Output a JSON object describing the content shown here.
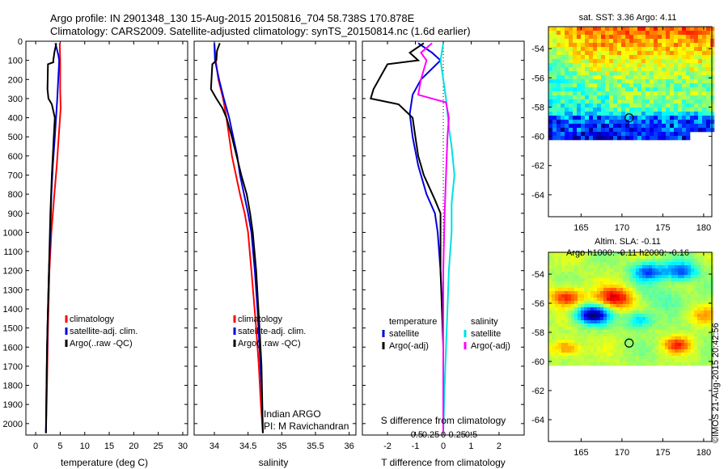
{
  "header": {
    "title_line1": "Argo profile: IN 2901348_130 15-Aug-2015 20150816_704 58.738S 170.878E",
    "title_line2": "Climatology: CARS2009. Satellite-adjusted climatology: synTS_20150814.nc (1.6d earlier)"
  },
  "colors": {
    "climatology": "#ff0000",
    "satellite_adj": "#0000dd",
    "argo": "#000000",
    "salinity_sat": "#00e0e0",
    "salinity_argo": "#ff00ff"
  },
  "chart_data": [
    {
      "id": "temperature",
      "type": "line",
      "xlabel": "temperature (deg C)",
      "xlim": [
        -2,
        31
      ],
      "xticks": [
        0,
        5,
        10,
        15,
        20,
        25,
        30
      ],
      "xtick_labels": [
        "0",
        "5",
        "10",
        "15",
        "20",
        "25",
        "30"
      ],
      "ylim": [
        0,
        2060
      ],
      "yticks": [
        0,
        100,
        200,
        300,
        400,
        500,
        600,
        700,
        800,
        900,
        1000,
        1100,
        1200,
        1300,
        1400,
        1500,
        1600,
        1700,
        1800,
        1900,
        2000
      ],
      "legend": [
        "climatology",
        "satellite-adj. clim.",
        "Argo(..raw -QC)"
      ],
      "series": [
        {
          "name": "climatology",
          "color": "#ff0000",
          "points": [
            [
              4.9,
              10
            ],
            [
              5.0,
              100
            ],
            [
              5.0,
              250
            ],
            [
              5.1,
              350
            ],
            [
              4.7,
              500
            ],
            [
              4.3,
              650
            ],
            [
              3.8,
              800
            ],
            [
              3.2,
              1000
            ],
            [
              2.8,
              1200
            ],
            [
              2.5,
              1500
            ],
            [
              2.3,
              1800
            ],
            [
              2.1,
              2050
            ]
          ]
        },
        {
          "name": "satellite-adj. clim.",
          "color": "#0000dd",
          "points": [
            [
              4.0,
              10
            ],
            [
              4.6,
              70
            ],
            [
              4.8,
              100
            ],
            [
              4.4,
              300
            ],
            [
              3.9,
              500
            ],
            [
              3.5,
              650
            ],
            [
              3.2,
              800
            ],
            [
              3.0,
              1000
            ],
            [
              2.7,
              1200
            ],
            [
              2.4,
              1500
            ],
            [
              2.2,
              1800
            ],
            [
              2.1,
              2050
            ]
          ]
        },
        {
          "name": "Argo(..raw -QC)",
          "color": "#000000",
          "points": [
            [
              4.2,
              10
            ],
            [
              3.8,
              60
            ],
            [
              3.6,
              100
            ],
            [
              3.6,
              110
            ],
            [
              2.5,
              120
            ],
            [
              2.4,
              250
            ],
            [
              2.6,
              300
            ],
            [
              3.3,
              330
            ],
            [
              3.9,
              400
            ],
            [
              3.7,
              500
            ],
            [
              3.3,
              700
            ],
            [
              3.0,
              900
            ],
            [
              2.8,
              1100
            ],
            [
              2.6,
              1300
            ],
            [
              2.3,
              1600
            ],
            [
              2.1,
              2050
            ]
          ]
        }
      ]
    },
    {
      "id": "salinity",
      "type": "line",
      "xlabel": "salinity",
      "xlim": [
        33.7,
        36.1
      ],
      "xticks": [
        34,
        34.5,
        35,
        35.5,
        36
      ],
      "xtick_labels": [
        "34",
        "34.5",
        "35",
        "35.5",
        "36"
      ],
      "ylim": [
        0,
        2060
      ],
      "legend": [
        "climatology",
        "satellite-adj. clim.",
        "Argo(..raw -QC)"
      ],
      "annotation": [
        "Indian ARGO",
        "PI: M Ravichandran"
      ],
      "series": [
        {
          "name": "climatology",
          "color": "#ff0000",
          "points": [
            [
              34.0,
              10
            ],
            [
              34.02,
              100
            ],
            [
              34.06,
              200
            ],
            [
              34.13,
              300
            ],
            [
              34.18,
              400
            ],
            [
              34.22,
              500
            ],
            [
              34.26,
              600
            ],
            [
              34.32,
              700
            ],
            [
              34.38,
              800
            ],
            [
              34.45,
              900
            ],
            [
              34.5,
              1000
            ],
            [
              34.55,
              1200
            ],
            [
              34.62,
              1500
            ],
            [
              34.66,
              1700
            ],
            [
              34.69,
              1900
            ],
            [
              34.72,
              2050
            ]
          ]
        },
        {
          "name": "satellite-adj. clim.",
          "color": "#0000dd",
          "points": [
            [
              34.0,
              10
            ],
            [
              34.01,
              100
            ],
            [
              34.07,
              200
            ],
            [
              34.14,
              300
            ],
            [
              34.18,
              350
            ],
            [
              34.22,
              400
            ],
            [
              34.28,
              500
            ],
            [
              34.34,
              600
            ],
            [
              34.38,
              700
            ],
            [
              34.44,
              800
            ],
            [
              34.5,
              900
            ],
            [
              34.55,
              1000
            ],
            [
              34.6,
              1200
            ],
            [
              34.64,
              1400
            ],
            [
              34.67,
              1600
            ],
            [
              34.7,
              1800
            ],
            [
              34.72,
              2050
            ]
          ]
        },
        {
          "name": "Argo(..raw -QC)",
          "color": "#000000",
          "points": [
            [
              34.08,
              10
            ],
            [
              34.04,
              50
            ],
            [
              34.03,
              100
            ],
            [
              33.97,
              120
            ],
            [
              33.95,
              250
            ],
            [
              34.03,
              300
            ],
            [
              34.12,
              350
            ],
            [
              34.18,
              400
            ],
            [
              34.26,
              500
            ],
            [
              34.33,
              600
            ],
            [
              34.4,
              700
            ],
            [
              34.48,
              800
            ],
            [
              34.53,
              900
            ],
            [
              34.57,
              1000
            ],
            [
              34.62,
              1200
            ],
            [
              34.67,
              1500
            ],
            [
              34.7,
              1700
            ],
            [
              34.72,
              2050
            ]
          ]
        }
      ]
    },
    {
      "id": "difference",
      "type": "line",
      "xlabel": "T difference from climatology",
      "xlabel_top": "S difference from climatology",
      "xlim": [
        -2.9,
        2.9
      ],
      "xticks": [
        -2,
        -1,
        0,
        1,
        2
      ],
      "xtick_labels": [
        "-2",
        "-1",
        "0",
        "1",
        "2"
      ],
      "sticks": [
        -1,
        -0.5,
        0,
        0.5,
        1
      ],
      "stick_labels": [
        "-0.5",
        "-0.25",
        "0",
        "0.25",
        "0.5"
      ],
      "ylim": [
        0,
        2060
      ],
      "legend_titles": [
        "temperature",
        "salinity"
      ],
      "legend_left": [
        "satellite",
        "Argo(-adj)"
      ],
      "legend_right": [
        "satellite",
        "Argo(-adj)"
      ],
      "series": [
        {
          "name": "temperature satellite",
          "color": "#0000dd",
          "points": [
            [
              -0.9,
              10
            ],
            [
              -0.4,
              60
            ],
            [
              -0.1,
              100
            ],
            [
              -0.8,
              200
            ],
            [
              -1.1,
              280
            ],
            [
              -1.2,
              380
            ],
            [
              -1.1,
              500
            ],
            [
              -0.9,
              650
            ],
            [
              -0.6,
              800
            ],
            [
              -0.3,
              900
            ],
            [
              -0.2,
              1000
            ],
            [
              -0.1,
              1200
            ],
            [
              0,
              1500
            ],
            [
              0,
              2050
            ]
          ]
        },
        {
          "name": "temperature Argo(-adj)",
          "color": "#000000",
          "points": [
            [
              -0.7,
              10
            ],
            [
              -1.2,
              60
            ],
            [
              -0.9,
              100
            ],
            [
              -2.0,
              120
            ],
            [
              -2.5,
              250
            ],
            [
              -2.6,
              300
            ],
            [
              -1.6,
              330
            ],
            [
              -1.1,
              400
            ],
            [
              -1.0,
              500
            ],
            [
              -0.9,
              600
            ],
            [
              -0.7,
              700
            ],
            [
              -0.3,
              830
            ],
            [
              -0.1,
              900
            ],
            [
              -0.1,
              1200
            ],
            [
              0,
              1600
            ],
            [
              0,
              2050
            ]
          ]
        },
        {
          "name": "salinity satellite",
          "color": "#00e0e0",
          "points": [
            [
              0,
              10
            ],
            [
              -0.1,
              100
            ],
            [
              0.1,
              300
            ],
            [
              0.2,
              450
            ],
            [
              0.3,
              550
            ],
            [
              0.4,
              700
            ],
            [
              0.3,
              850
            ],
            [
              0.3,
              1000
            ],
            [
              0.2,
              1200
            ],
            [
              0.15,
              1400
            ],
            [
              0.1,
              1600
            ],
            [
              0.05,
              1800
            ],
            [
              0,
              2050
            ]
          ]
        },
        {
          "name": "salinity Argo(-adj)",
          "color": "#ff00ff",
          "points": [
            [
              -0.4,
              10
            ],
            [
              -0.8,
              60
            ],
            [
              -0.6,
              100
            ],
            [
              -0.8,
              200
            ],
            [
              -0.9,
              280
            ],
            [
              0.1,
              320
            ],
            [
              0.2,
              400
            ],
            [
              0.15,
              500
            ],
            [
              0.1,
              700
            ],
            [
              0.05,
              900
            ],
            [
              0,
              1200
            ],
            [
              0,
              2050
            ]
          ]
        }
      ]
    },
    {
      "id": "sst_map",
      "type": "heatmap",
      "title": "sat. SST: 3.36 Argo: 4.11",
      "xlim": [
        161,
        181
      ],
      "ylim": [
        -65.5,
        -52.5
      ],
      "xticks": [
        165,
        170,
        175,
        180
      ],
      "xtick_labels": [
        "165",
        "170",
        "175",
        "180"
      ],
      "yticks": [
        -54,
        -56,
        -58,
        -60,
        -62,
        -64
      ],
      "ytick_labels": [
        "-54",
        "-56",
        "-58",
        "-60",
        "-62",
        "-64"
      ],
      "data_lat_range": [
        -60.1,
        -52.5
      ],
      "marker": {
        "lon": 170.878,
        "lat": -58.738
      }
    },
    {
      "id": "sla_map",
      "type": "heatmap",
      "title": "Altim. SLA: -0.11",
      "subtitle": "Argo h1000: -0.11 h2000: -0.16",
      "xlim": [
        161,
        181
      ],
      "ylim": [
        -65.5,
        -52.5
      ],
      "xticks": [
        165,
        170,
        175,
        180
      ],
      "xtick_labels": [
        "165",
        "170",
        "175",
        "180"
      ],
      "yticks": [
        -54,
        -56,
        -58,
        -60,
        -62,
        -64
      ],
      "ytick_labels": [
        "-54",
        "-56",
        "-58",
        "-60",
        "-62",
        "-64"
      ],
      "data_lat_range": [
        -60.1,
        -52.5
      ],
      "marker": {
        "lon": 170.878,
        "lat": -58.738
      }
    }
  ],
  "credit": "©IMOS 21-Aug-2015 20:42:56"
}
